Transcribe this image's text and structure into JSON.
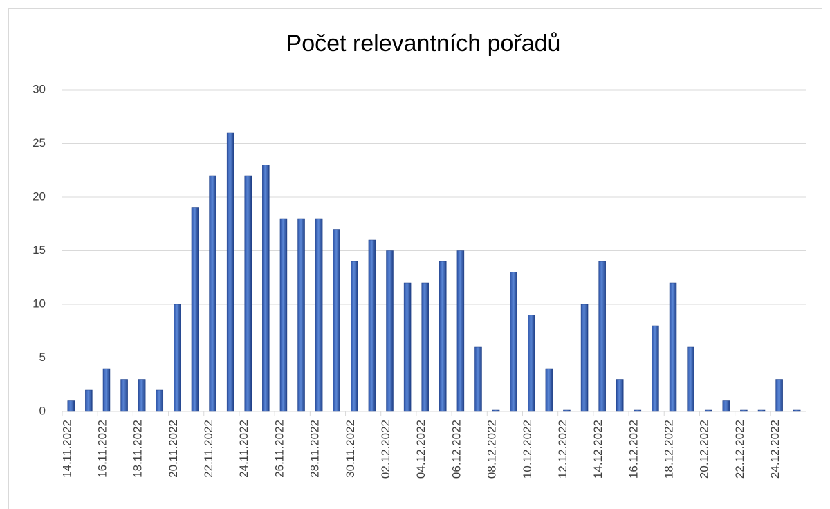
{
  "chart_data": {
    "type": "bar",
    "title": "Počet relevantních pořadů",
    "categories": [
      "14.11.2022",
      null,
      "16.11.2022",
      null,
      "18.11.2022",
      null,
      "20.11.2022",
      null,
      "22.11.2022",
      null,
      "24.11.2022",
      null,
      "26.11.2022",
      null,
      "28.11.2022",
      null,
      "30.11.2022",
      null,
      "02.12.2022",
      null,
      "04.12.2022",
      null,
      "06.12.2022",
      null,
      "08.12.2022",
      null,
      "10.12.2022",
      null,
      "12.12.2022",
      null,
      "14.12.2022",
      null,
      "16.12.2022",
      null,
      "18.12.2022",
      null,
      "20.12.2022",
      null,
      "22.12.2022",
      null,
      "24.12.2022",
      null
    ],
    "values": [
      1,
      2,
      4,
      3,
      3,
      2,
      10,
      19,
      22,
      26,
      22,
      23,
      18,
      18,
      18,
      17,
      14,
      16,
      15,
      12,
      12,
      14,
      15,
      6,
      0,
      13,
      9,
      4,
      0,
      10,
      14,
      3,
      0,
      8,
      12,
      6,
      0,
      1,
      0,
      0,
      3,
      0
    ],
    "color": "#4472c4",
    "ylim": [
      0,
      30
    ],
    "yticks": [
      0,
      5,
      10,
      15,
      20,
      25,
      30
    ],
    "grid": true
  }
}
